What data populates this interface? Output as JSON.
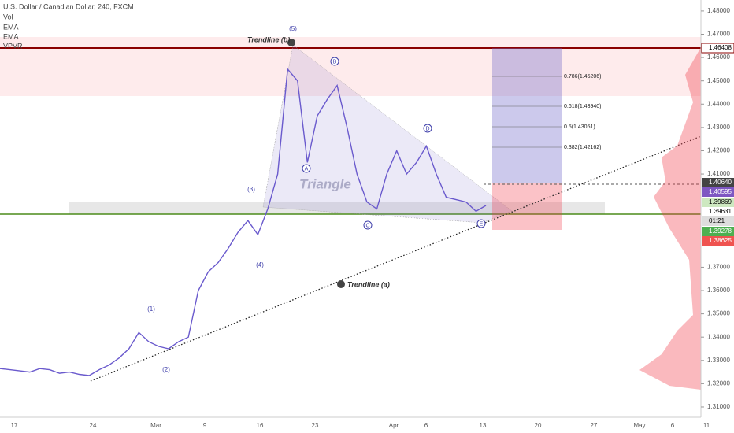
{
  "legend": {
    "symbol": "U.S. Dollar / Canadian Dollar, 240, FXCM",
    "indicators": [
      "Vol",
      "EMA",
      "EMA",
      "VPVR"
    ]
  },
  "chart_data": {
    "type": "line",
    "color": "#6a5acd",
    "values": [
      1.3265,
      1.326,
      1.3255,
      1.325,
      1.3265,
      1.326,
      1.3245,
      1.325,
      1.324,
      1.3235,
      1.326,
      1.328,
      1.331,
      1.335,
      1.342,
      1.338,
      1.336,
      1.335,
      1.338,
      1.34,
      1.36,
      1.368,
      1.372,
      1.378,
      1.385,
      1.39,
      1.384,
      1.395,
      1.41,
      1.455,
      1.45,
      1.415,
      1.435,
      1.442,
      1.448,
      1.43,
      1.41,
      1.398,
      1.395,
      1.41,
      1.42,
      1.41,
      1.415,
      1.422,
      1.41,
      1.4,
      1.399,
      1.398,
      1.394,
      1.3965
    ],
    "ylim": [
      1.3056,
      1.4847
    ],
    "yticks": [
      {
        "value": 1.48,
        "label": "1.48000"
      },
      {
        "value": 1.47,
        "label": "1.47000"
      },
      {
        "value": 1.46,
        "label": "1.46000"
      },
      {
        "value": 1.45,
        "label": "1.45000"
      },
      {
        "value": 1.44,
        "label": "1.44000"
      },
      {
        "value": 1.43,
        "label": "1.43000"
      },
      {
        "value": 1.42,
        "label": "1.42000"
      },
      {
        "value": 1.41,
        "label": "1.41000"
      },
      {
        "value": 1.37,
        "label": "1.37000"
      },
      {
        "value": 1.36,
        "label": "1.36000"
      },
      {
        "value": 1.35,
        "label": "1.35000"
      },
      {
        "value": 1.34,
        "label": "1.34000"
      },
      {
        "value": 1.33,
        "label": "1.33000"
      },
      {
        "value": 1.32,
        "label": "1.32000"
      },
      {
        "value": 1.31,
        "label": "1.31000"
      }
    ]
  },
  "time_axis": [
    "17",
    "24",
    "Mar",
    "9",
    "16",
    "23",
    "Apr",
    "6",
    "13",
    "20",
    "27",
    "May",
    "6",
    "11"
  ],
  "price_badges": [
    "1.46408",
    "1.40640",
    "1.40595",
    "1.39869",
    "1.39631",
    "01:21",
    "1.39278",
    "1.38625"
  ],
  "annotations": {
    "trendline_b": "Trendline (b)",
    "trendline_a": "Trendline (a)",
    "triangle": "Triangle",
    "waves": [
      "(1)",
      "(2)",
      "(3)",
      "(4)",
      "(5)"
    ],
    "abcde": [
      "A",
      "B",
      "C",
      "D",
      "E"
    ],
    "fib": [
      "0.786(1.45206)",
      "0.618(1.43940)",
      "0.5(1.43051)",
      "0.382(1.42162)"
    ]
  }
}
